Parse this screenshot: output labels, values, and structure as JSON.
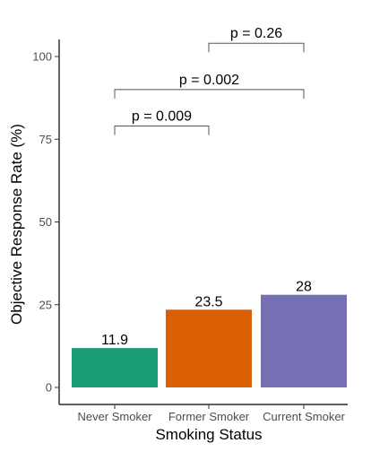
{
  "chart_data": {
    "type": "bar",
    "title": "",
    "xlabel": "Smoking Status",
    "ylabel": "Objective Response Rate (%)",
    "ylim": [
      0,
      110
    ],
    "yticks": [
      0,
      25,
      50,
      75,
      100
    ],
    "categories": [
      "Never Smoker",
      "Former Smoker",
      "Current Smoker"
    ],
    "values": [
      11.9,
      23.5,
      28
    ],
    "value_labels": [
      "11.9",
      "23.5",
      "28"
    ],
    "colors": [
      "#1b9e77",
      "#d95f02",
      "#7570b3"
    ],
    "grid": false,
    "legend": "none",
    "annotations": [
      {
        "from": 0,
        "to": 1,
        "label": "p = 0.009",
        "y": 79
      },
      {
        "from": 0,
        "to": 2,
        "label": "p = 0.002",
        "y": 90
      },
      {
        "from": 1,
        "to": 2,
        "label": "p = 0.26",
        "y": 104
      }
    ]
  }
}
